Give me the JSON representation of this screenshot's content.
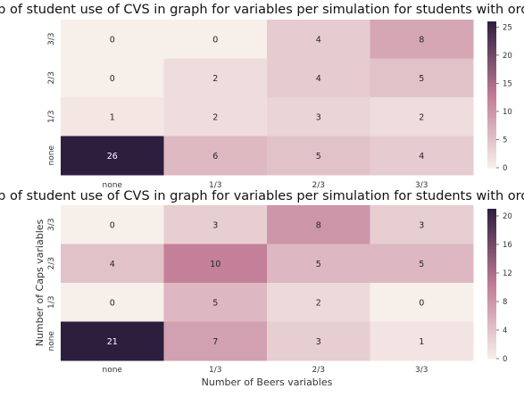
{
  "chart_data": [
    {
      "type": "heatmap",
      "title": "Map of student use of CVS in graph for variables per simulation for students with order CL",
      "xlabel": "",
      "ylabel": "",
      "x_categories": [
        "none",
        "1/3",
        "2/3",
        "3/3"
      ],
      "y_categories": [
        "3/3",
        "2/3",
        "1/3",
        "none"
      ],
      "values": [
        [
          0,
          0,
          4,
          8
        ],
        [
          0,
          2,
          4,
          5
        ],
        [
          1,
          2,
          3,
          2
        ],
        [
          26,
          6,
          5,
          4
        ]
      ],
      "colorbar_ticks": [
        0,
        5,
        10,
        15,
        20,
        25
      ],
      "vmin": 0,
      "vmax": 26
    },
    {
      "type": "heatmap",
      "title": "Map of student use of CVS in graph for variables per simulation for students with order LC",
      "xlabel": "Number of Beers variables",
      "ylabel": "Number of Caps variables",
      "x_categories": [
        "none",
        "1/3",
        "2/3",
        "3/3"
      ],
      "y_categories": [
        "3/3",
        "2/3",
        "1/3",
        "none"
      ],
      "values": [
        [
          0,
          3,
          8,
          3
        ],
        [
          4,
          10,
          5,
          5
        ],
        [
          0,
          5,
          2,
          0
        ],
        [
          21,
          7,
          3,
          1
        ]
      ],
      "colorbar_ticks": [
        0,
        4,
        8,
        12,
        16,
        20
      ],
      "vmin": 0,
      "vmax": 21
    }
  ],
  "colors": {
    "low": "#f7efea",
    "mid": "#c07a94",
    "high": "#2d1e3e",
    "text_dark": "#262626",
    "text_light": "#ffffff"
  }
}
